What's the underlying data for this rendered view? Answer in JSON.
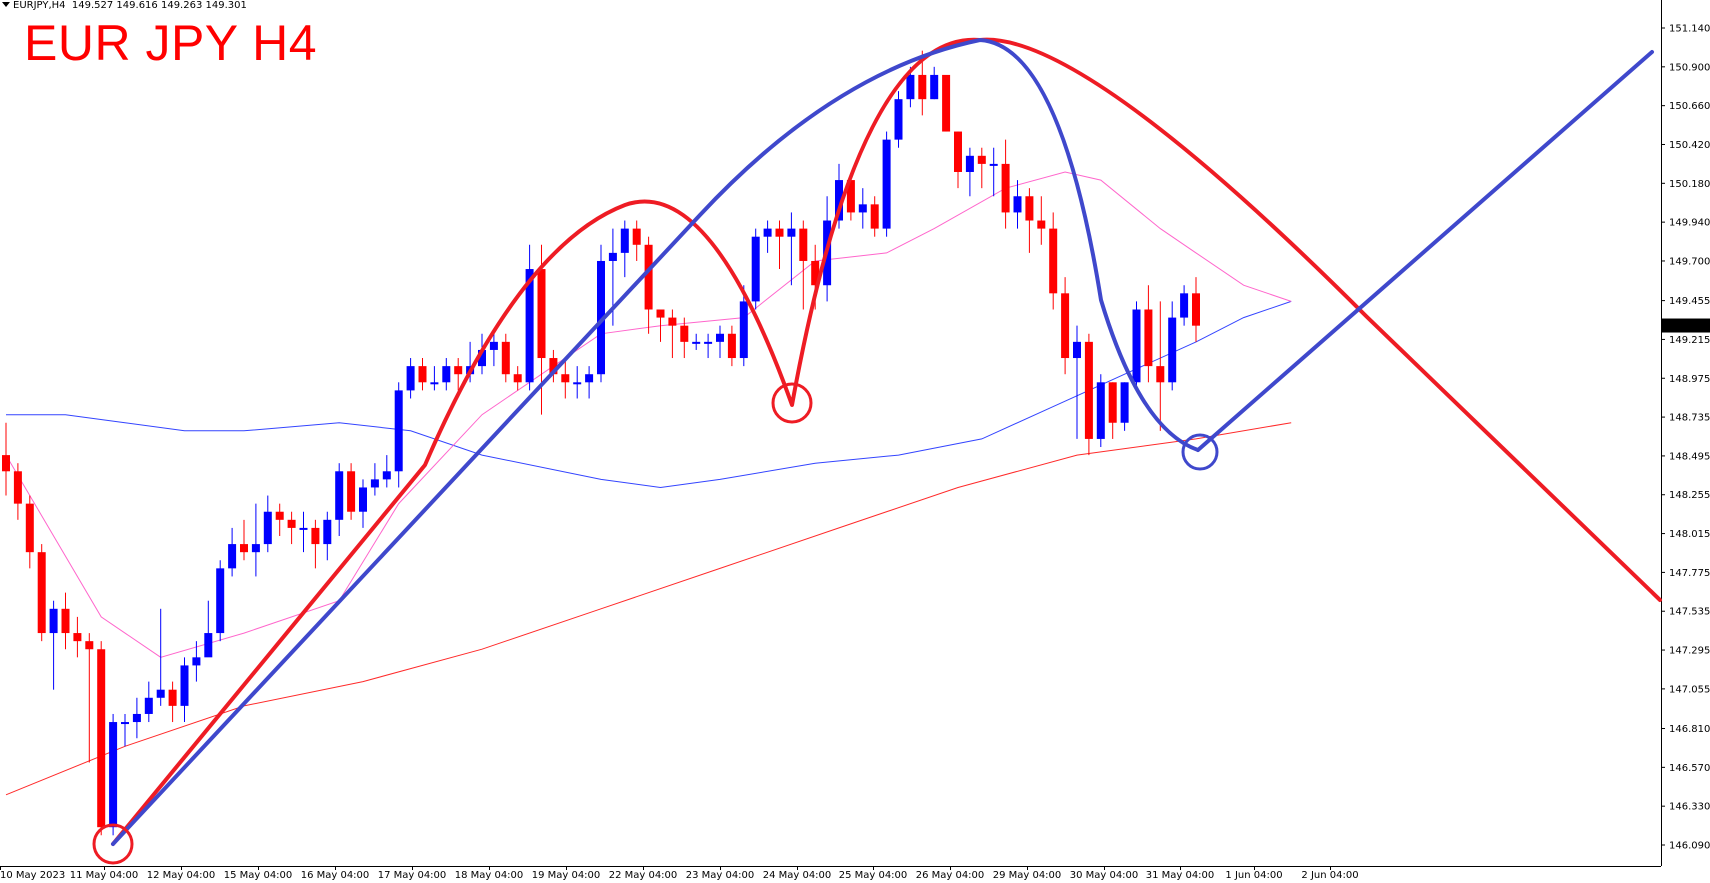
{
  "header": {
    "symbol": "EURJPY,H4",
    "open": "149.527",
    "high": "149.616",
    "low": "149.263",
    "close": "149.301"
  },
  "overlay_title": "EUR JPY H4",
  "colors": {
    "bull": "#0000ff",
    "bear": "#ff0000",
    "annotation_red": "#ee1c24",
    "annotation_blue": "#3f48cc",
    "ma_fast": "#ff66cc",
    "ma_mid": "#3344ff",
    "ma_slow": "#ff2a2a",
    "axis": "#000000",
    "price_tag_bg": "#000000",
    "price_tag_fg": "#ffffff"
  },
  "chart_data": {
    "type": "candlestick",
    "title": "EUR JPY H4",
    "ylim": [
      146.0,
      151.2
    ],
    "ytick_labels": [
      "151.140",
      "150.900",
      "150.660",
      "150.420",
      "150.180",
      "149.940",
      "149.700",
      "149.455",
      "149.215",
      "148.975",
      "148.735",
      "148.495",
      "148.255",
      "148.015",
      "147.775",
      "147.535",
      "147.295",
      "147.055",
      "146.810",
      "146.570",
      "146.330",
      "146.090"
    ],
    "current_price_label": "149.301",
    "xtick_labels": [
      "10 May 2023",
      "11 May 04:00",
      "12 May 04:00",
      "15 May 04:00",
      "16 May 04:00",
      "17 May 04:00",
      "18 May 04:00",
      "19 May 04:00",
      "22 May 04:00",
      "23 May 04:00",
      "24 May 04:00",
      "25 May 04:00",
      "26 May 04:00",
      "29 May 04:00",
      "30 May 04:00",
      "31 May 04:00",
      "1 Jun 04:00",
      "2 Jun 04:00"
    ],
    "candles": [
      [
        148.5,
        148.4,
        148.7,
        148.25
      ],
      [
        148.4,
        148.2,
        148.45,
        148.1
      ],
      [
        148.2,
        147.9,
        148.25,
        147.8
      ],
      [
        147.9,
        147.4,
        147.95,
        147.35
      ],
      [
        147.4,
        147.55,
        147.6,
        147.05
      ],
      [
        147.55,
        147.4,
        147.65,
        147.3
      ],
      [
        147.4,
        147.35,
        147.5,
        147.25
      ],
      [
        147.35,
        147.3,
        147.4,
        146.6
      ],
      [
        147.3,
        146.2,
        147.35,
        146.15
      ],
      [
        146.2,
        146.85,
        146.9,
        146.15
      ],
      [
        146.85,
        146.85,
        146.9,
        146.7
      ],
      [
        146.85,
        146.9,
        147.0,
        146.75
      ],
      [
        146.9,
        147.0,
        147.1,
        146.85
      ],
      [
        147.0,
        147.05,
        147.55,
        146.95
      ],
      [
        147.05,
        146.95,
        147.1,
        146.85
      ],
      [
        146.95,
        147.2,
        147.25,
        146.85
      ],
      [
        147.2,
        147.25,
        147.35,
        147.1
      ],
      [
        147.25,
        147.4,
        147.6,
        147.3
      ],
      [
        147.4,
        147.8,
        147.85,
        147.35
      ],
      [
        147.8,
        147.95,
        148.05,
        147.75
      ],
      [
        147.95,
        147.9,
        148.1,
        147.85
      ],
      [
        147.9,
        147.95,
        148.2,
        147.75
      ],
      [
        147.95,
        148.15,
        148.25,
        147.9
      ],
      [
        148.15,
        148.1,
        148.2,
        148.0
      ],
      [
        148.1,
        148.05,
        148.15,
        147.95
      ],
      [
        148.05,
        148.05,
        148.15,
        147.9
      ],
      [
        148.05,
        147.95,
        148.1,
        147.8
      ],
      [
        147.95,
        148.1,
        148.15,
        147.85
      ],
      [
        148.1,
        148.4,
        148.45,
        148.0
      ],
      [
        148.4,
        148.15,
        148.45,
        148.1
      ],
      [
        148.15,
        148.3,
        148.35,
        148.05
      ],
      [
        148.3,
        148.35,
        148.45,
        148.25
      ],
      [
        148.35,
        148.4,
        148.5,
        148.3
      ],
      [
        148.4,
        148.9,
        148.95,
        148.3
      ],
      [
        148.9,
        149.05,
        149.1,
        148.85
      ],
      [
        149.05,
        148.95,
        149.1,
        148.9
      ],
      [
        148.95,
        148.95,
        149.05,
        148.9
      ],
      [
        148.95,
        149.05,
        149.1,
        148.9
      ],
      [
        149.05,
        149.0,
        149.1,
        148.9
      ],
      [
        149.0,
        149.05,
        149.2,
        148.95
      ],
      [
        149.05,
        149.15,
        149.25,
        149.0
      ],
      [
        149.15,
        149.2,
        149.25,
        149.05
      ],
      [
        149.2,
        149.0,
        149.25,
        148.95
      ],
      [
        149.0,
        148.95,
        149.05,
        148.9
      ],
      [
        148.95,
        149.65,
        149.8,
        148.9
      ],
      [
        149.65,
        149.1,
        149.8,
        148.75
      ],
      [
        149.1,
        149.0,
        149.15,
        148.95
      ],
      [
        149.0,
        148.95,
        149.1,
        148.85
      ],
      [
        148.95,
        148.95,
        149.05,
        148.85
      ],
      [
        148.95,
        149.0,
        149.05,
        148.85
      ],
      [
        149.0,
        149.7,
        149.8,
        148.95
      ],
      [
        149.7,
        149.75,
        149.9,
        149.3
      ],
      [
        149.75,
        149.9,
        149.95,
        149.6
      ],
      [
        149.9,
        149.8,
        149.95,
        149.7
      ],
      [
        149.8,
        149.4,
        149.85,
        149.25
      ],
      [
        149.4,
        149.35,
        149.4,
        149.2
      ],
      [
        149.35,
        149.3,
        149.4,
        149.1
      ],
      [
        149.3,
        149.2,
        149.35,
        149.1
      ],
      [
        149.2,
        149.2,
        149.25,
        149.15
      ],
      [
        149.2,
        149.2,
        149.25,
        149.1
      ],
      [
        149.2,
        149.25,
        149.3,
        149.1
      ],
      [
        149.25,
        149.1,
        149.3,
        149.05
      ],
      [
        149.1,
        149.45,
        149.55,
        149.05
      ],
      [
        149.45,
        149.85,
        149.9,
        149.4
      ],
      [
        149.85,
        149.9,
        149.95,
        149.75
      ],
      [
        149.9,
        149.85,
        149.95,
        149.65
      ],
      [
        149.85,
        149.9,
        150.0,
        149.55
      ],
      [
        149.9,
        149.7,
        149.95,
        149.4
      ],
      [
        149.7,
        149.55,
        149.8,
        149.4
      ],
      [
        149.55,
        149.95,
        150.1,
        149.45
      ],
      [
        149.95,
        150.2,
        150.3,
        149.9
      ],
      [
        150.2,
        150.0,
        150.2,
        149.95
      ],
      [
        150.0,
        150.05,
        150.15,
        149.9
      ],
      [
        150.05,
        149.9,
        150.1,
        149.85
      ],
      [
        149.9,
        150.45,
        150.5,
        149.85
      ],
      [
        150.45,
        150.7,
        150.75,
        150.4
      ],
      [
        150.7,
        150.85,
        150.9,
        150.65
      ],
      [
        150.85,
        150.7,
        151.0,
        150.6
      ],
      [
        150.7,
        150.85,
        150.9,
        150.7
      ],
      [
        150.85,
        150.5,
        150.8,
        150.5
      ],
      [
        150.5,
        150.25,
        150.5,
        150.15
      ],
      [
        150.25,
        150.35,
        150.4,
        150.1
      ],
      [
        150.35,
        150.3,
        150.4,
        150.15
      ],
      [
        150.3,
        150.3,
        150.4,
        150.1
      ],
      [
        150.3,
        150.0,
        150.45,
        149.9
      ],
      [
        150.0,
        150.1,
        150.2,
        149.9
      ],
      [
        150.1,
        149.95,
        150.15,
        149.75
      ],
      [
        149.95,
        149.9,
        150.1,
        149.8
      ],
      [
        149.9,
        149.5,
        150.0,
        149.4
      ],
      [
        149.5,
        149.1,
        149.6,
        149.0
      ],
      [
        149.1,
        149.2,
        149.3,
        148.6
      ],
      [
        149.2,
        148.6,
        149.25,
        148.5
      ],
      [
        148.6,
        148.95,
        149.0,
        148.55
      ],
      [
        148.95,
        148.7,
        148.95,
        148.6
      ],
      [
        148.7,
        148.95,
        148.95,
        148.65
      ],
      [
        148.95,
        149.4,
        149.45,
        148.9
      ],
      [
        149.4,
        149.05,
        149.55,
        148.95
      ],
      [
        149.05,
        148.95,
        149.45,
        148.65
      ],
      [
        148.95,
        149.35,
        149.45,
        148.9
      ],
      [
        149.35,
        149.5,
        149.55,
        149.3
      ],
      [
        149.5,
        149.3,
        149.6,
        149.2
      ]
    ],
    "ma_fast": [
      [
        0,
        148.5
      ],
      [
        8,
        147.5
      ],
      [
        13,
        147.25
      ],
      [
        20,
        147.4
      ],
      [
        28,
        147.6
      ],
      [
        33,
        148.2
      ],
      [
        40,
        148.75
      ],
      [
        45,
        149.0
      ],
      [
        50,
        149.25
      ],
      [
        55,
        149.3
      ],
      [
        62,
        149.35
      ],
      [
        68,
        149.7
      ],
      [
        74,
        149.75
      ],
      [
        78,
        149.9
      ],
      [
        84,
        150.15
      ],
      [
        89,
        150.25
      ],
      [
        92,
        150.2
      ],
      [
        97,
        149.9
      ],
      [
        100,
        149.75
      ],
      [
        104,
        149.55
      ],
      [
        108,
        149.45
      ]
    ],
    "ma_mid": [
      [
        0,
        148.75
      ],
      [
        5,
        148.75
      ],
      [
        10,
        148.7
      ],
      [
        15,
        148.65
      ],
      [
        20,
        148.65
      ],
      [
        28,
        148.7
      ],
      [
        34,
        148.65
      ],
      [
        40,
        148.5
      ],
      [
        50,
        148.35
      ],
      [
        55,
        148.3
      ],
      [
        60,
        148.35
      ],
      [
        68,
        148.45
      ],
      [
        75,
        148.5
      ],
      [
        82,
        148.6
      ],
      [
        88,
        148.8
      ],
      [
        94,
        149.0
      ],
      [
        100,
        149.2
      ],
      [
        104,
        149.35
      ],
      [
        108,
        149.45
      ]
    ],
    "ma_slow": [
      [
        0,
        146.4
      ],
      [
        10,
        146.7
      ],
      [
        20,
        146.95
      ],
      [
        30,
        147.1
      ],
      [
        40,
        147.3
      ],
      [
        50,
        147.55
      ],
      [
        60,
        147.8
      ],
      [
        70,
        148.05
      ],
      [
        80,
        148.3
      ],
      [
        90,
        148.5
      ],
      [
        100,
        148.6
      ],
      [
        108,
        148.7
      ]
    ]
  }
}
